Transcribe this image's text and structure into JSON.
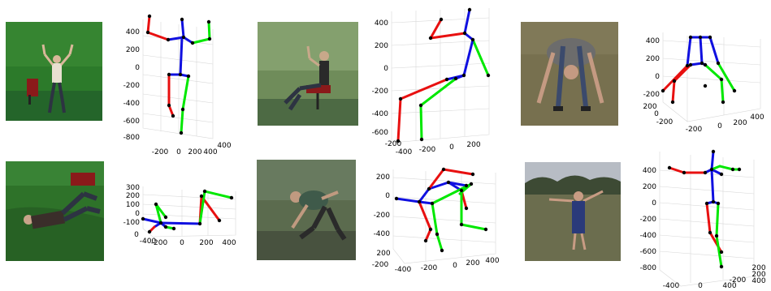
{
  "figure": {
    "panels": [
      {
        "id": "row1-col1",
        "scene": "green-studio",
        "y_ticks": [
          "400",
          "200",
          "0",
          "-200",
          "-400",
          "-600",
          "-800"
        ],
        "x_ticks": [
          "-200",
          "0",
          "200",
          "400"
        ],
        "z_ticks": [
          "400"
        ]
      },
      {
        "id": "row1-col2",
        "scene": "green-studio-seated",
        "y_ticks": [
          "400",
          "200",
          "0",
          "-200",
          "-400",
          "-600"
        ],
        "x_ticks": [
          "-200",
          "-400",
          "-200",
          "0",
          "200"
        ]
      },
      {
        "id": "row1-col3",
        "scene": "outdoor-grass",
        "y_ticks": [
          "400",
          "200",
          "0",
          "-200"
        ],
        "x_ticks": [
          "200",
          "0",
          "-200",
          "-200",
          "0",
          "200",
          "400"
        ]
      },
      {
        "id": "row2-col1",
        "scene": "green-studio-lying",
        "y_ticks": [
          "300",
          "200",
          "100",
          "0",
          "-100"
        ],
        "x_ticks": [
          "0",
          "-400",
          "-200",
          "0",
          "200",
          "400"
        ]
      },
      {
        "id": "row2-col2",
        "scene": "studio-crouch",
        "y_ticks": [
          "200",
          "0",
          "-200",
          "-400",
          "-600",
          "-800"
        ],
        "x_ticks": [
          "200",
          "-200",
          "-400",
          "-200",
          "0",
          "200",
          "400"
        ]
      },
      {
        "id": "row2-col3",
        "scene": "outdoor-field",
        "y_ticks": [
          "400",
          "200",
          "0",
          "-200",
          "-400",
          "-600",
          "-800"
        ],
        "x_ticks": [
          "-400",
          "0",
          "400",
          "-200",
          "200",
          "200",
          "400"
        ]
      }
    ],
    "colors": {
      "left_limb": "#00e800",
      "right_limb": "#e81010",
      "torso": "#1010e0",
      "joint": "#000000",
      "studio_green": "#2f7a2c",
      "grass": "#6e6a4a"
    }
  }
}
